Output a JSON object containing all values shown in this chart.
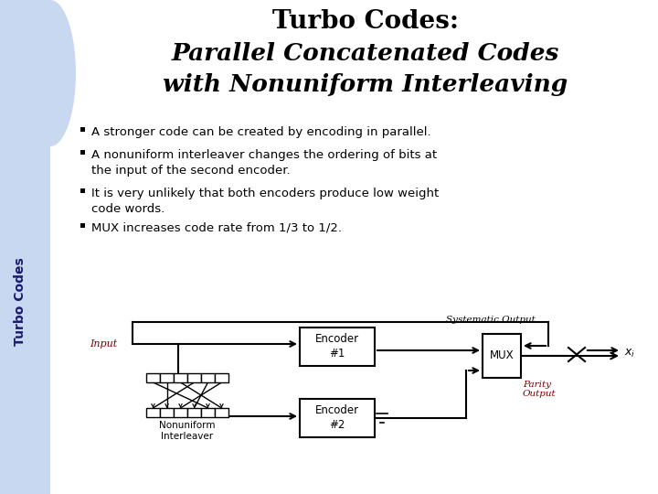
{
  "title_line1": "Turbo Codes:",
  "title_line2a": "Parallel Concatenated Codes",
  "title_line2b": "with Nonuniform Interleaving",
  "sidebar_text": "Turbo Codes",
  "bullet_texts": [
    "A stronger code can be created by encoding in parallel.",
    "A nonuniform interleaver changes the ordering of bits at\nthe input of the second encoder.",
    "It is very unlikely that both encoders produce low weight\ncode words.",
    "MUX increases code rate from 1/3 to 1/2."
  ],
  "bg_color": "#ffffff",
  "sidebar_color": "#c8d8f0",
  "title_color": "#000000",
  "bullet_color": "#000000",
  "sidebar_text_color": "#1a1a6e",
  "italic_label_color": "#800000",
  "diagram_color": "#000000",
  "sysout_label_color": "#000000"
}
